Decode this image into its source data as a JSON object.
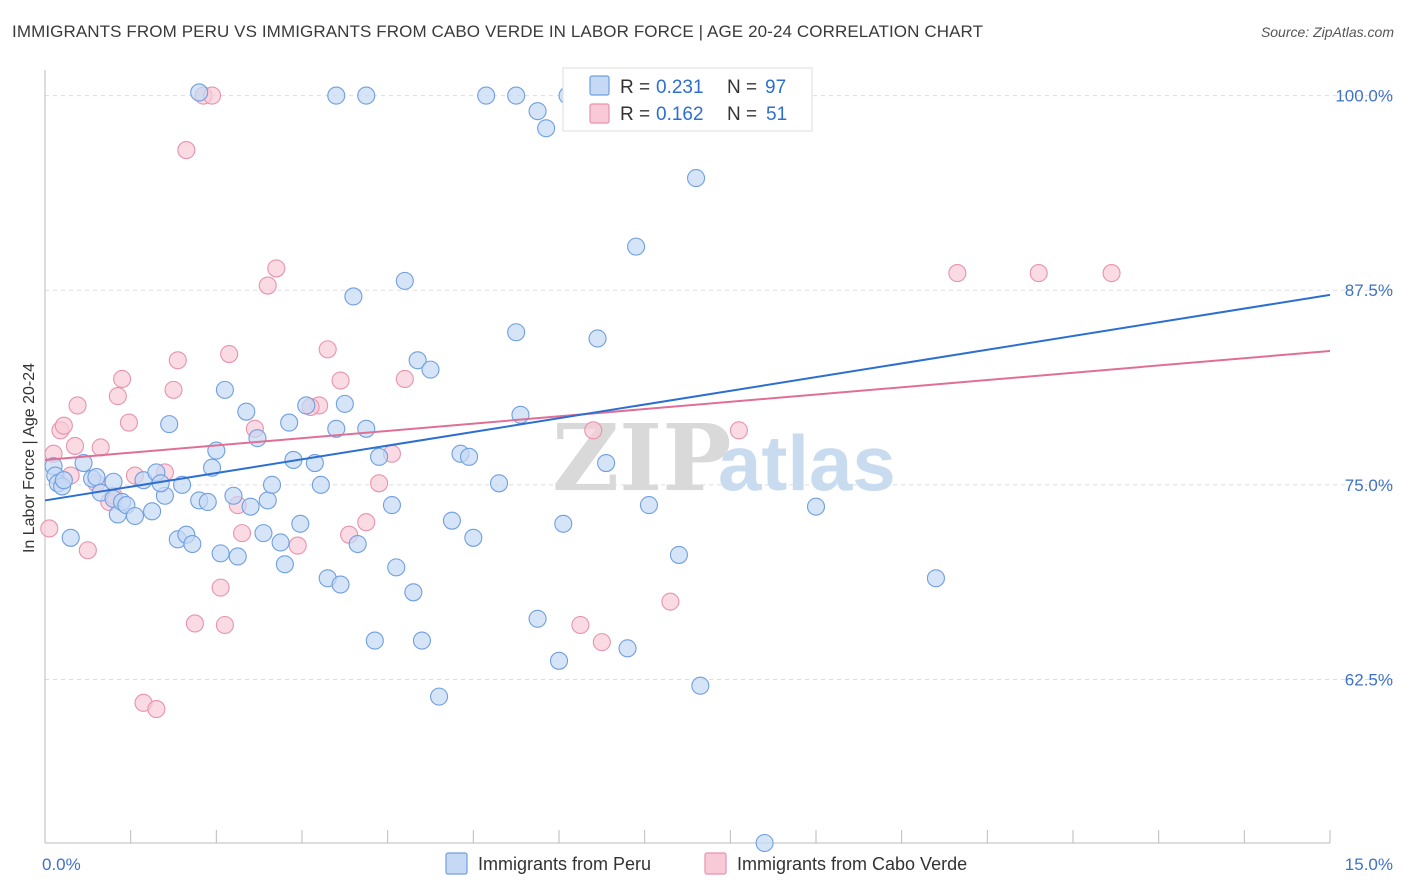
{
  "title": "IMMIGRANTS FROM PERU VS IMMIGRANTS FROM CABO VERDE IN LABOR FORCE | AGE 20-24 CORRELATION CHART",
  "source": "Source: ZipAtlas.com",
  "watermark": {
    "zip": "ZIP",
    "atlas": "atlas"
  },
  "colors": {
    "peru_fill": "#c5d9f5",
    "peru_stroke": "#6f9fe0",
    "peru_line": "#2c6fd1",
    "cabo_fill": "#f8cad7",
    "cabo_stroke": "#e893ad",
    "cabo_line": "#e06f96",
    "tick_text": "#3f72c7",
    "grid": "#dddddd"
  },
  "legend": {
    "rows": [
      {
        "r_label": "R =",
        "r_value": "0.231",
        "n_label": "N =",
        "n_value": "97"
      },
      {
        "r_label": "R =",
        "r_value": "0.162",
        "n_label": "N =",
        "n_value": "51"
      }
    ]
  },
  "chart_data": {
    "type": "scatter",
    "title": "IMMIGRANTS FROM PERU VS IMMIGRANTS FROM CABO VERDE IN LABOR FORCE | AGE 20-24 CORRELATION CHART",
    "xlabel": "",
    "ylabel": "In Labor Force | Age 20-24",
    "xlim": [
      0,
      15
    ],
    "ylim": [
      52,
      101
    ],
    "x_tick_labels": [
      "0.0%",
      "15.0%"
    ],
    "y_ticks": [
      62.5,
      75.0,
      87.5,
      100.0
    ],
    "y_tick_labels": [
      "62.5%",
      "75.0%",
      "87.5%",
      "100.0%"
    ],
    "grid": true,
    "legend_position": "top-center",
    "series": [
      {
        "name": "Immigrants from Peru",
        "R": 0.231,
        "N": 97,
        "trend": {
          "x": [
            0,
            15
          ],
          "y": [
            74.0,
            87.2
          ]
        },
        "points": [
          [
            0.1,
            76.2
          ],
          [
            0.12,
            75.6
          ],
          [
            0.15,
            75.1
          ],
          [
            0.2,
            74.9
          ],
          [
            0.22,
            75.3
          ],
          [
            0.3,
            71.6
          ],
          [
            0.45,
            76.4
          ],
          [
            0.55,
            75.4
          ],
          [
            0.6,
            75.5
          ],
          [
            0.65,
            74.5
          ],
          [
            0.8,
            74.1
          ],
          [
            0.85,
            73.1
          ],
          [
            0.9,
            73.9
          ],
          [
            0.95,
            73.7
          ],
          [
            1.05,
            73.0
          ],
          [
            1.15,
            75.3
          ],
          [
            1.25,
            73.3
          ],
          [
            1.3,
            75.8
          ],
          [
            1.4,
            74.3
          ],
          [
            1.45,
            78.9
          ],
          [
            1.6,
            75.0
          ],
          [
            1.55,
            71.5
          ],
          [
            1.65,
            71.8
          ],
          [
            1.72,
            71.2
          ],
          [
            1.8,
            74.0
          ],
          [
            1.9,
            73.9
          ],
          [
            1.95,
            76.1
          ],
          [
            2.0,
            77.2
          ],
          [
            2.05,
            70.6
          ],
          [
            2.1,
            81.1
          ],
          [
            2.2,
            74.3
          ],
          [
            2.25,
            70.4
          ],
          [
            2.35,
            79.7
          ],
          [
            2.4,
            73.6
          ],
          [
            2.48,
            78.0
          ],
          [
            2.55,
            71.9
          ],
          [
            2.6,
            74.0
          ],
          [
            2.65,
            75.0
          ],
          [
            2.75,
            71.3
          ],
          [
            2.8,
            69.9
          ],
          [
            2.85,
            79.0
          ],
          [
            2.9,
            76.6
          ],
          [
            2.98,
            72.5
          ],
          [
            3.05,
            80.1
          ],
          [
            3.15,
            76.4
          ],
          [
            3.22,
            75.0
          ],
          [
            3.3,
            69.0
          ],
          [
            3.4,
            78.6
          ],
          [
            3.45,
            68.6
          ],
          [
            3.5,
            80.2
          ],
          [
            3.6,
            87.1
          ],
          [
            3.65,
            71.2
          ],
          [
            3.75,
            78.6
          ],
          [
            3.85,
            65.0
          ],
          [
            3.9,
            76.8
          ],
          [
            4.05,
            73.7
          ],
          [
            4.1,
            69.7
          ],
          [
            4.2,
            88.1
          ],
          [
            4.3,
            68.1
          ],
          [
            4.35,
            83.0
          ],
          [
            4.4,
            65.0
          ],
          [
            4.5,
            82.4
          ],
          [
            4.6,
            61.4
          ],
          [
            4.75,
            72.7
          ],
          [
            4.85,
            77.0
          ],
          [
            4.95,
            76.8
          ],
          [
            5.0,
            71.6
          ],
          [
            5.3,
            75.1
          ],
          [
            5.5,
            84.8
          ],
          [
            5.55,
            79.5
          ],
          [
            5.75,
            66.4
          ],
          [
            6.0,
            63.7
          ],
          [
            6.05,
            72.5
          ],
          [
            6.45,
            84.4
          ],
          [
            6.55,
            76.4
          ],
          [
            6.9,
            90.3
          ],
          [
            7.05,
            73.7
          ],
          [
            7.4,
            70.5
          ],
          [
            7.6,
            94.7
          ],
          [
            7.65,
            62.1
          ],
          [
            8.5,
            100.1
          ],
          [
            9.0,
            73.6
          ],
          [
            10.4,
            69.0
          ],
          [
            6.8,
            64.5
          ],
          [
            5.5,
            100.0
          ],
          [
            5.75,
            99.0
          ],
          [
            5.85,
            97.9
          ],
          [
            6.1,
            100.0
          ],
          [
            6.85,
            100.0
          ],
          [
            5.15,
            100.0
          ],
          [
            3.4,
            100.0
          ],
          [
            3.75,
            100.0
          ],
          [
            8.4,
            52.0
          ],
          [
            7.75,
            100.1
          ],
          [
            1.8,
            100.2
          ],
          [
            0.8,
            75.2
          ],
          [
            1.35,
            75.1
          ]
        ]
      },
      {
        "name": "Immigrants from Cabo Verde",
        "R": 0.162,
        "N": 51,
        "trend": {
          "x": [
            0,
            15
          ],
          "y": [
            76.6,
            83.6
          ]
        },
        "points": [
          [
            0.05,
            72.2
          ],
          [
            0.1,
            77.0
          ],
          [
            0.18,
            78.5
          ],
          [
            0.22,
            78.8
          ],
          [
            0.3,
            75.6
          ],
          [
            0.35,
            77.5
          ],
          [
            0.38,
            80.1
          ],
          [
            0.5,
            70.8
          ],
          [
            0.6,
            75.1
          ],
          [
            0.65,
            77.4
          ],
          [
            0.75,
            73.9
          ],
          [
            0.8,
            74.3
          ],
          [
            0.85,
            80.7
          ],
          [
            0.9,
            81.8
          ],
          [
            0.98,
            79.0
          ],
          [
            1.05,
            75.6
          ],
          [
            1.15,
            61.0
          ],
          [
            1.3,
            60.6
          ],
          [
            1.4,
            75.8
          ],
          [
            1.5,
            81.1
          ],
          [
            1.55,
            83.0
          ],
          [
            1.65,
            96.5
          ],
          [
            1.75,
            66.1
          ],
          [
            1.85,
            100.0
          ],
          [
            1.95,
            100.0
          ],
          [
            2.05,
            68.4
          ],
          [
            2.1,
            66.0
          ],
          [
            2.15,
            83.4
          ],
          [
            2.25,
            73.7
          ],
          [
            2.3,
            71.9
          ],
          [
            2.45,
            78.6
          ],
          [
            2.6,
            87.8
          ],
          [
            2.7,
            88.9
          ],
          [
            2.95,
            71.1
          ],
          [
            3.2,
            80.1
          ],
          [
            3.3,
            83.7
          ],
          [
            3.45,
            81.7
          ],
          [
            3.55,
            71.8
          ],
          [
            3.75,
            72.6
          ],
          [
            3.9,
            75.1
          ],
          [
            4.05,
            77.0
          ],
          [
            4.2,
            81.8
          ],
          [
            6.25,
            66.0
          ],
          [
            6.4,
            78.5
          ],
          [
            6.5,
            64.9
          ],
          [
            7.3,
            67.5
          ],
          [
            8.1,
            78.5
          ],
          [
            10.65,
            88.6
          ],
          [
            11.6,
            88.6
          ],
          [
            12.45,
            88.6
          ],
          [
            3.1,
            80.0
          ]
        ]
      }
    ]
  },
  "bottom_legend": {
    "items": [
      {
        "label": "Immigrants from Peru"
      },
      {
        "label": "Immigrants from Cabo Verde"
      }
    ]
  }
}
